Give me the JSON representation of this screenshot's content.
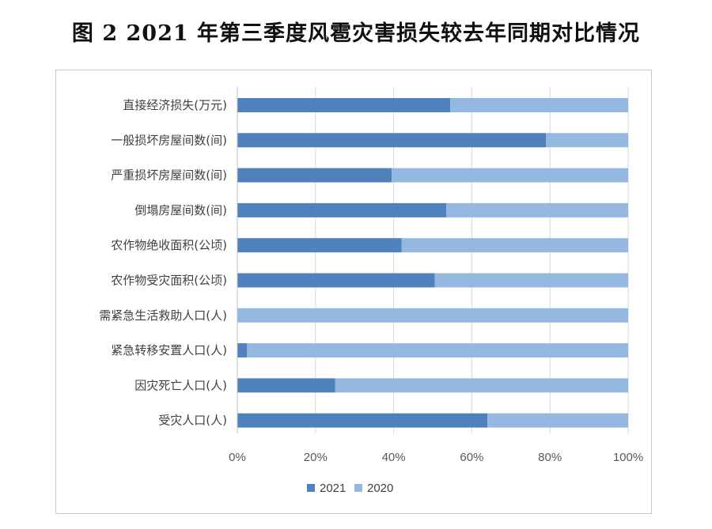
{
  "title": "图 2   2021 年第三季度风雹灾害损失较去年同期对比情况",
  "chart_data": {
    "type": "bar",
    "orientation": "horizontal",
    "stacked": "percent",
    "categories": [
      "直接经济损失(万元)",
      "一般损坏房屋间数(间)",
      "严重损坏房屋间数(间)",
      "倒塌房屋间数(间)",
      "农作物绝收面积(公顷)",
      "农作物受灾面积(公顷)",
      "需紧急生活救助人口(人)",
      "紧急转移安置人口(人)",
      "因灾死亡人口(人)",
      "受灾人口(人)"
    ],
    "series": [
      {
        "name": "2021",
        "color": "#4f81bd",
        "values": [
          54.5,
          79,
          39.5,
          53.5,
          42,
          50.5,
          0,
          2.5,
          25,
          64
        ]
      },
      {
        "name": "2020",
        "color": "#95b8e1",
        "values": [
          45.5,
          21,
          60.5,
          46.5,
          58,
          49.5,
          100,
          97.5,
          75,
          36
        ]
      }
    ],
    "xticks": [
      "0%",
      "20%",
      "40%",
      "60%",
      "80%",
      "100%"
    ],
    "xlim": [
      0,
      100
    ],
    "legend_position": "bottom",
    "grid": "vertical"
  }
}
